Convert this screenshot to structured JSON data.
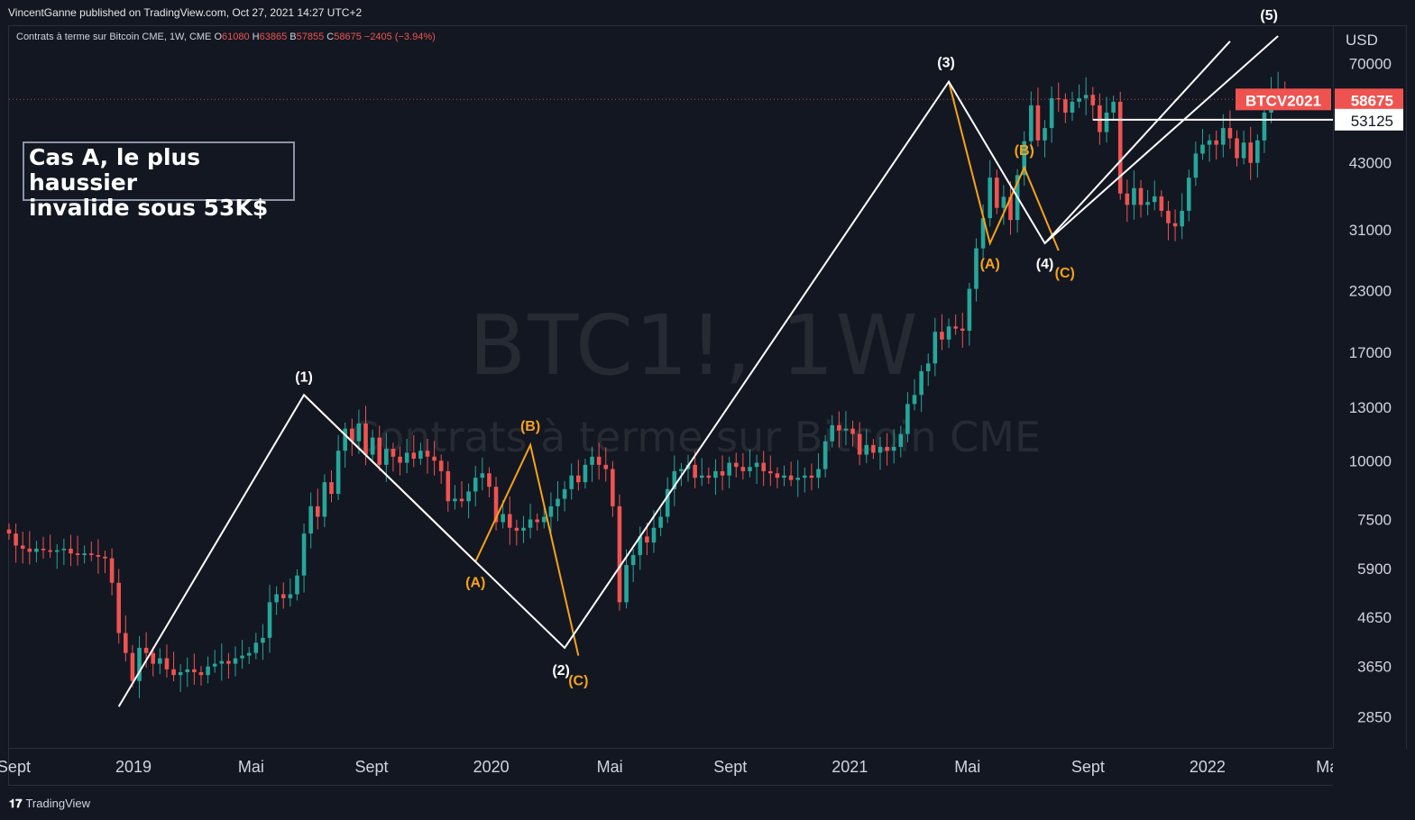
{
  "header": {
    "published_by": "VincentGanne published on TradingView.com, Oct 27, 2021 14:27 UTC+2"
  },
  "symbol_line": {
    "name": "Contrats à terme sur Bitcoin CME, 1W, CME",
    "o_label": "O",
    "o_value": "61080",
    "h_label": "H",
    "h_value": "63865",
    "b_label": "B",
    "b_value": "57855",
    "c_label": "C",
    "c_value": "58675",
    "change": "−2405 (−3.94%)"
  },
  "watermark": {
    "main": "BTC1!, 1W",
    "sub": "Contrats à terme sur Bitcoin CME"
  },
  "annotation": {
    "line1": "Cas A, le plus haussier",
    "line2": "invalide sous 53K$"
  },
  "price_axis": {
    "currency": "USD",
    "ticks": [
      "70000",
      "43000",
      "31000",
      "23000",
      "17000",
      "13000",
      "10000",
      "7500",
      "5900",
      "4650",
      "3650",
      "2850"
    ],
    "current_label": "BTCV2021",
    "current_value": "58675",
    "level_value": "53125"
  },
  "time_axis": {
    "ticks": [
      "Sept",
      "2019",
      "Mai",
      "Sept",
      "2020",
      "Mai",
      "Sept",
      "2021",
      "Mai",
      "Sept",
      "2022",
      "Mai"
    ]
  },
  "wave_labels": {
    "w1": "(1)",
    "w2": "(2)",
    "w3": "(3)",
    "w4": "(4)",
    "w5": "(5)",
    "a1": "(A)",
    "b1": "(B)",
    "c1": "(C)",
    "a2": "(A)",
    "b2": "(B)",
    "c2": "(C)"
  },
  "footer": {
    "logo": "TradingView"
  },
  "colors": {
    "up": "#26a69a",
    "down": "#ef5350",
    "wave_main": "#ffffff",
    "wave_corrective": "#f7a21b",
    "background": "#131722"
  },
  "chart_data": {
    "type": "candlestick",
    "title": "Contrats à terme sur Bitcoin CME, 1W, CME",
    "ylabel": "USD",
    "y_scale": "log",
    "ylim": [
      2450,
      84000
    ],
    "xlim": [
      "2018-08-27",
      "2022-05-09"
    ],
    "x_ticks": [
      {
        "label": "Sept",
        "date": "2018-09-01"
      },
      {
        "label": "2019",
        "date": "2019-01-01"
      },
      {
        "label": "Mai",
        "date": "2019-05-01"
      },
      {
        "label": "Sept",
        "date": "2019-09-01"
      },
      {
        "label": "2020",
        "date": "2020-01-01"
      },
      {
        "label": "Mai",
        "date": "2020-05-01"
      },
      {
        "label": "Sept",
        "date": "2020-09-01"
      },
      {
        "label": "2021",
        "date": "2021-01-01"
      },
      {
        "label": "Mai",
        "date": "2021-05-01"
      },
      {
        "label": "Sept",
        "date": "2021-09-01"
      },
      {
        "label": "2022",
        "date": "2022-01-01"
      },
      {
        "label": "Mai",
        "date": "2022-05-01"
      }
    ],
    "y_ticks": [
      70000,
      43000,
      31000,
      23000,
      17000,
      13000,
      10000,
      7500,
      5900,
      4650,
      3650,
      2850
    ],
    "start_date": "2018-08-27",
    "closes": [
      7000,
      6600,
      6500,
      6400,
      6500,
      6450,
      6400,
      6450,
      6500,
      6350,
      6300,
      6350,
      6300,
      6250,
      6200,
      5500,
      4300,
      3900,
      3400,
      4000,
      3900,
      3700,
      3800,
      3600,
      3500,
      3550,
      3600,
      3550,
      3500,
      3650,
      3700,
      3750,
      3700,
      3800,
      3850,
      3900,
      4100,
      4200,
      5000,
      5200,
      5100,
      5200,
      5700,
      7000,
      8000,
      7600,
      9000,
      8500,
      10500,
      11700,
      11000,
      12000,
      10300,
      11200,
      9800,
      10600,
      10200,
      9900,
      10400,
      10100,
      10500,
      10200,
      10000,
      9500,
      8200,
      8300,
      8200,
      8600,
      9200,
      9400,
      8800,
      7400,
      7700,
      7200,
      7100,
      7200,
      7500,
      7400,
      7600,
      8000,
      8300,
      8700,
      9300,
      9000,
      9800,
      10200,
      9800,
      9600,
      8000,
      5000,
      6000,
      6300,
      6900,
      6700,
      7200,
      7600,
      8700,
      9500,
      9600,
      9800,
      9200,
      9300,
      9200,
      9500,
      9300,
      9900,
      9700,
      9500,
      9700,
      9900,
      9500,
      9400,
      9200,
      9300,
      9100,
      9200,
      9300,
      9200,
      9600,
      11000,
      11900,
      11600,
      11700,
      11400,
      10300,
      10800,
      10400,
      10700,
      10500,
      10700,
      11400,
      13200,
      13800,
      15500,
      16100,
      18800,
      18100,
      19300,
      19100,
      18900,
      23200,
      28300,
      32800,
      40000,
      34500,
      36400,
      32500,
      40500,
      47800,
      57000,
      48000,
      51000,
      59000,
      58700,
      55000,
      58000,
      59000,
      60000,
      57000,
      50000,
      55000,
      58000,
      37000,
      35000,
      38000,
      35000,
      35500,
      36500,
      34000,
      32000,
      31500,
      34000,
      40000,
      45000,
      47000,
      48000,
      47000,
      51000,
      48500,
      44000,
      47500,
      43000,
      48000,
      55000,
      61200,
      61600,
      58675
    ],
    "ohlc_header": {
      "open": 61080,
      "high": 63865,
      "low": 57855,
      "close": 58675,
      "change": -2405,
      "change_pct": -3.94
    },
    "horizontal_levels": [
      {
        "label": "BTCV2021",
        "value": 58675
      },
      {
        "value": 53125
      }
    ],
    "waves": {
      "impulse": [
        {
          "date": "2018-12-17",
          "price": 3000
        },
        {
          "label": "(1)",
          "date": "2019-06-24",
          "price": 13800
        },
        {
          "date": "2019-12-16",
          "price": 6100
        },
        {
          "label": "(2)",
          "date": "2020-03-16",
          "price": 4000
        },
        {
          "label": "(3)",
          "date": "2021-04-12",
          "price": 64000
        },
        {
          "label": "(4)",
          "date": "2021-07-19",
          "price": 29000
        },
        {
          "label": "(5)",
          "date": "2022-03-14",
          "price": 80000
        }
      ],
      "correction_1": [
        {
          "date": "2019-06-24",
          "price": 13800
        },
        {
          "label": "(A)",
          "date": "2019-12-16",
          "price": 6100
        },
        {
          "label": "(B)",
          "date": "2020-02-10",
          "price": 10800
        },
        {
          "label": "(C)",
          "date": "2020-03-30",
          "price": 3850
        }
      ],
      "correction_2": [
        {
          "date": "2021-04-12",
          "price": 64000
        },
        {
          "label": "(A)",
          "date": "2021-05-24",
          "price": 29000
        },
        {
          "label": "(B)",
          "date": "2021-06-28",
          "price": 42000
        },
        {
          "label": "(C)",
          "date": "2021-08-02",
          "price": 28000
        }
      ],
      "support_line": [
        {
          "date": "2021-07-19",
          "price": 29000
        },
        {
          "date": "2022-01-24",
          "price": 78000
        }
      ]
    }
  }
}
